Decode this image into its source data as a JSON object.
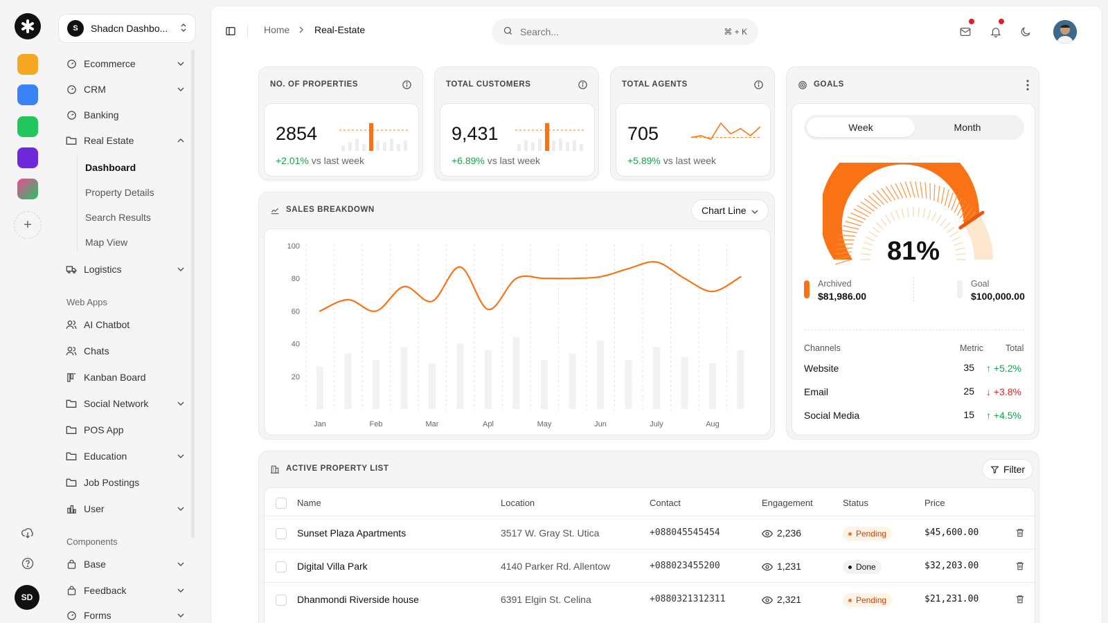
{
  "workspace": {
    "avatar": "S",
    "name": "Shadcn Dashbo..."
  },
  "rail": {
    "user_initials": "SD"
  },
  "sidebar": {
    "items": [
      {
        "label": "Ecommerce",
        "icon": "gauge-icon"
      },
      {
        "label": "CRM",
        "icon": "gauge-icon"
      },
      {
        "label": "Banking",
        "icon": "gauge-icon"
      },
      {
        "label": "Real Estate",
        "icon": "folder-icon"
      },
      {
        "label": "Logistics",
        "icon": "truck-icon"
      }
    ],
    "real_estate_sub": [
      "Dashboard",
      "Property Details",
      "Search Results",
      "Map View"
    ],
    "web_apps_label": "Web Apps",
    "web_apps": [
      {
        "label": "AI Chatbot",
        "icon": "users-icon"
      },
      {
        "label": "Chats",
        "icon": "users-icon"
      },
      {
        "label": "Kanban Board",
        "icon": "kanban-icon"
      },
      {
        "label": "Social Network",
        "icon": "folder-icon"
      },
      {
        "label": "POS App",
        "icon": "folder-icon"
      },
      {
        "label": "Education",
        "icon": "folder-icon"
      },
      {
        "label": "Job Postings",
        "icon": "folder-icon"
      },
      {
        "label": "User",
        "icon": "chart-icon"
      }
    ],
    "components_label": "Components",
    "components": [
      {
        "label": "Base",
        "icon": "bag-icon"
      },
      {
        "label": "Feedback",
        "icon": "bag-icon"
      },
      {
        "label": "Forms",
        "icon": "gauge-icon"
      }
    ]
  },
  "header": {
    "breadcrumb_home": "Home",
    "breadcrumb_current": "Real-Estate",
    "search_placeholder": "Search...",
    "search_shortcut": "⌘ + K"
  },
  "stats": [
    {
      "title": "NO. OF PROPERTIES",
      "value": "2854",
      "delta": "+2.01%",
      "delta_suffix": "vs last week"
    },
    {
      "title": "TOTAL CUSTOMERS",
      "value": "9,431",
      "delta": "+6.89%",
      "delta_suffix": "vs last week"
    },
    {
      "title": "TOTAL AGENTS",
      "value": "705",
      "delta": "+5.89%",
      "delta_suffix": "vs last week"
    }
  ],
  "sales": {
    "title": "SALES BREAKDOWN",
    "dropdown_value": "Chart Line"
  },
  "goals": {
    "title": "GOALS",
    "tabs": [
      "Week",
      "Month"
    ],
    "active_tab": "Week",
    "percent_label": "81%",
    "percent": 81,
    "archived_label": "Archived",
    "archived_value": "$81,986.00",
    "goal_label": "Goal",
    "goal_value": "$100,000.00",
    "channel_headers": [
      "Channels",
      "Metric",
      "Total"
    ],
    "channels": [
      {
        "name": "Website",
        "metric": "35",
        "total": "+5.2%",
        "dir": "up"
      },
      {
        "name": "Email",
        "metric": "25",
        "total": "+3.8%",
        "dir": "down"
      },
      {
        "name": "Social Media",
        "metric": "15",
        "total": "+4.5%",
        "dir": "up"
      }
    ],
    "colors": {
      "accent": "#f97316",
      "track": "#fde7cf"
    }
  },
  "properties": {
    "title": "ACTIVE PROPERTY LIST",
    "filter_label": "Filter",
    "headers": [
      "Name",
      "Location",
      "Contact",
      "Engagement",
      "Status",
      "Price"
    ],
    "rows": [
      {
        "name": "Sunset Plaza Apartments",
        "location": "3517 W. Gray St. Utica",
        "contact": "+088045545454",
        "engagement": "2,236",
        "status": "Pending",
        "price": "$45,600.00"
      },
      {
        "name": "Digital Villa Park",
        "location": "4140 Parker Rd. Allentow",
        "contact": "+088023455200",
        "engagement": "1,231",
        "status": "Done",
        "price": "$32,203.00"
      },
      {
        "name": "Dhanmondi Riverside house",
        "location": "6391 Elgin St. Celina",
        "contact": "+0880321312311",
        "engagement": "2,321",
        "status": "Pending",
        "price": "$21,231.00"
      }
    ]
  },
  "chart_data": [
    {
      "type": "line",
      "title": "SALES BREAKDOWN",
      "xlabel": "",
      "ylabel": "",
      "categories": [
        "Jan",
        "Feb",
        "Mar",
        "Apl",
        "May",
        "Jun",
        "July",
        "Aug"
      ],
      "y_ticks": [
        100,
        80,
        60,
        40,
        20
      ],
      "ylim": [
        0,
        100
      ],
      "grid": true,
      "line_x": [
        0,
        0.5,
        1,
        1.5,
        2,
        2.5,
        3,
        3.5,
        4,
        4.5,
        5,
        5.5,
        6,
        6.5,
        7,
        7.5
      ],
      "line_values": [
        60,
        67,
        60,
        75,
        66,
        87,
        61,
        80,
        80,
        80,
        81,
        86,
        90,
        80,
        72,
        81
      ],
      "bar_x": [
        0,
        0.5,
        1,
        1.5,
        2,
        2.5,
        3,
        3.5,
        4,
        4.5,
        5,
        5.5,
        6,
        6.5,
        7,
        7.5
      ],
      "bar_values": [
        26,
        34,
        30,
        38,
        28,
        40,
        36,
        44,
        30,
        34,
        42,
        30,
        38,
        32,
        28,
        36
      ],
      "colors": {
        "line": "#f97316",
        "bar": "#f2f2f2"
      }
    },
    {
      "type": "bar",
      "title": "NO. OF PROPERTIES",
      "values": [
        3,
        5,
        7,
        4,
        16,
        6,
        5,
        7,
        4,
        6
      ],
      "highlight_index": 4,
      "baseline": 12
    },
    {
      "type": "bar",
      "title": "TOTAL CUSTOMERS",
      "values": [
        4,
        6,
        5,
        7,
        16,
        6,
        7,
        5,
        6,
        4
      ],
      "highlight_index": 4,
      "baseline": 12
    },
    {
      "type": "line",
      "title": "TOTAL AGENTS",
      "values": [
        6,
        7,
        5,
        14,
        8,
        11,
        7,
        12
      ],
      "baseline": 6
    }
  ]
}
